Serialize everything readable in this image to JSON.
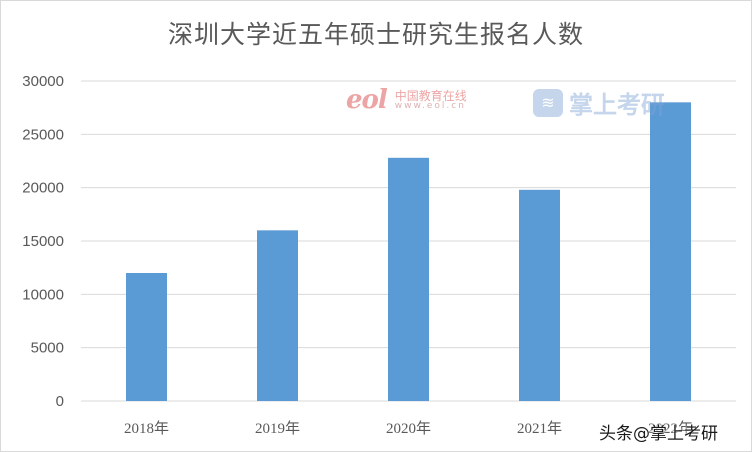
{
  "chart_data": {
    "type": "bar",
    "title": "深圳大学近五年硕士研究生报名人数",
    "categories": [
      "2018年",
      "2019年",
      "2020年",
      "2021年",
      "2022年"
    ],
    "values": [
      12000,
      16000,
      22800,
      19800,
      28000
    ],
    "ylim": [
      0,
      30000
    ],
    "yticks": [
      0,
      5000,
      10000,
      15000,
      20000,
      25000,
      30000
    ],
    "xlabel": "",
    "ylabel": "",
    "grid": true,
    "bar_color": "#5b9bd5"
  },
  "watermarks": {
    "eol_logo": "eol",
    "eol_name": "中国教育在线",
    "eol_url": "www.eol.cn",
    "zhangshang": "掌上考研",
    "zhangshang_icon": "graduation-cap-icon"
  },
  "credit": "头条@掌上考研"
}
